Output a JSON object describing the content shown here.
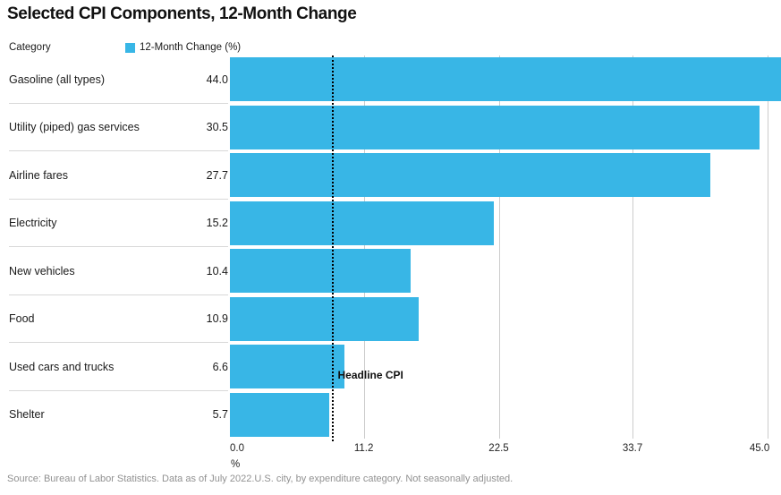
{
  "title": "Selected CPI Components, 12-Month Change",
  "legend": {
    "category_label": "Category",
    "series_label": "12-Month Change (%)"
  },
  "chart_data": {
    "type": "bar",
    "orientation": "horizontal",
    "title": "Selected CPI Components, 12-Month Change",
    "series_name": "12-Month Change (%)",
    "categories": [
      "Gasoline (all types)",
      "Utility (piped) gas services",
      "Airline fares",
      "Electricity",
      "New vehicles",
      "Food",
      "Used cars and trucks",
      "Shelter"
    ],
    "values": [
      44.0,
      30.5,
      27.7,
      15.2,
      10.4,
      10.9,
      6.6,
      5.7
    ],
    "value_labels": [
      "44.0",
      "30.5",
      "27.7",
      "15.2",
      "10.4",
      "10.9",
      "6.6",
      "5.7"
    ],
    "x_ticks": [
      0.0,
      11.2,
      22.5,
      33.7,
      45.0
    ],
    "x_tick_labels": [
      "0.0",
      "11.2",
      "22.5",
      "33.7",
      "45.0"
    ],
    "xlim": [
      0,
      45.0
    ],
    "xlabel": "%",
    "grid": "vertical-gridlines-on",
    "legend_position": "top",
    "bar_color": "#38b6e6",
    "reference_line": {
      "label": "Headline CPI",
      "value": 8.5
    }
  },
  "source": "Source: Bureau of Labor Statistics. Data as of July 2022.U.S. city, by expenditure category. Not seasonally adjusted."
}
